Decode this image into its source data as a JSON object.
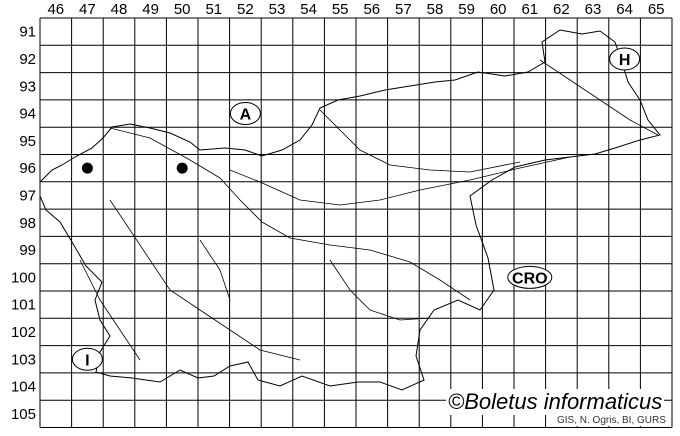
{
  "grid": {
    "columns": [
      "46",
      "47",
      "48",
      "49",
      "50",
      "51",
      "52",
      "53",
      "54",
      "55",
      "56",
      "57",
      "58",
      "59",
      "60",
      "61",
      "62",
      "63",
      "64",
      "65"
    ],
    "rows": [
      "91",
      "92",
      "93",
      "94",
      "95",
      "96",
      "97",
      "98",
      "99",
      "100",
      "101",
      "102",
      "103",
      "104",
      "105"
    ]
  },
  "country_labels": [
    {
      "text": "A",
      "col": "52",
      "row": "94"
    },
    {
      "text": "H",
      "col": "64",
      "row": "92"
    },
    {
      "text": "CRO",
      "col": "61",
      "row": "100"
    },
    {
      "text": "I",
      "col": "47",
      "row": "103"
    }
  ],
  "records": [
    {
      "col": "47",
      "row": "96"
    },
    {
      "col": "50",
      "row": "96"
    }
  ],
  "copyright": "©Boletus informaticus",
  "source": "GIS, N. Ogris, BI, GURS",
  "colors": {
    "lines": "#000000",
    "points": "#000000",
    "background": "#ffffff"
  }
}
